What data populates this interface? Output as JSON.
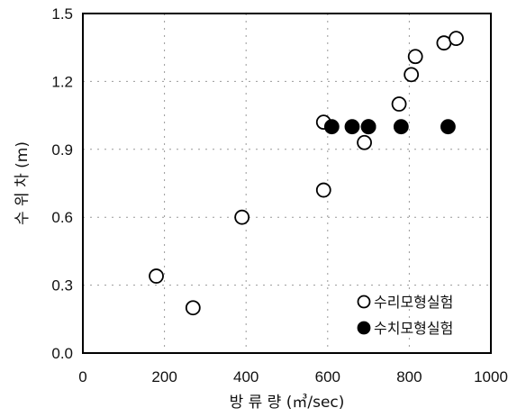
{
  "chart_data": {
    "type": "scatter",
    "title": "",
    "xlabel": "방 류 량 (㎥/sec)",
    "ylabel": "수 위 차 (m)",
    "xlim": [
      0,
      1000
    ],
    "ylim": [
      0.0,
      1.5
    ],
    "x_ticks": [
      "0",
      "200",
      "400",
      "600",
      "800",
      "1000"
    ],
    "y_ticks": [
      "0.0",
      "0.3",
      "0.6",
      "0.9",
      "1.2",
      "1.5"
    ],
    "grid": true,
    "legend_position": "bottom-right",
    "series": [
      {
        "name": "수리모형실험",
        "marker": "open-circle",
        "color": "#000000",
        "points": [
          [
            180,
            0.34
          ],
          [
            270,
            0.2
          ],
          [
            390,
            0.6
          ],
          [
            590,
            0.72
          ],
          [
            590,
            1.02
          ],
          [
            690,
            0.93
          ],
          [
            700,
            1.0
          ],
          [
            775,
            1.1
          ],
          [
            805,
            1.23
          ],
          [
            815,
            1.31
          ],
          [
            885,
            1.37
          ],
          [
            915,
            1.39
          ]
        ]
      },
      {
        "name": "수치모형실험",
        "marker": "filled-circle",
        "color": "#000000",
        "points": [
          [
            610,
            1.0
          ],
          [
            660,
            1.0
          ],
          [
            700,
            1.0
          ],
          [
            780,
            1.0
          ],
          [
            895,
            1.0
          ]
        ]
      }
    ]
  }
}
